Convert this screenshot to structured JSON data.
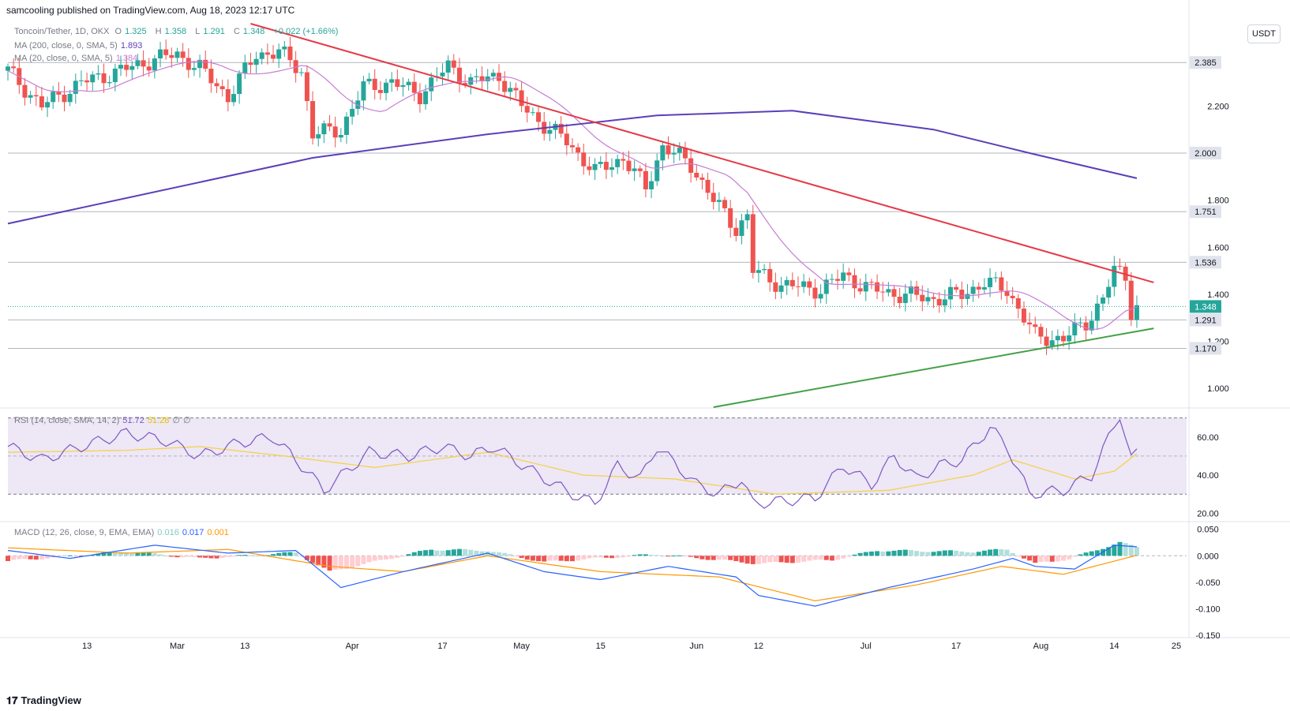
{
  "header": {
    "published": "samcooling published on TradingView.com, Aug 18, 2023 12:17 UTC",
    "currency_button": "USDT",
    "footer_brand": "TradingView"
  },
  "legend": {
    "symbol": "Toncoin/Tether, 1D, OKX",
    "o_label": "O",
    "o": "1.325",
    "h_label": "H",
    "h": "1.358",
    "l_label": "L",
    "l": "1.291",
    "c_label": "C",
    "c": "1.348",
    "change": "+0.022 (+1.66%)",
    "ma200": "MA (200, close, 0, SMA, 5)",
    "ma200_value": "1.893",
    "ma20": "MA (20, close, 0, SMA, 5)",
    "ma20_value": "1.384",
    "rsi": "RSI (14, close, SMA, 14, 2)",
    "rsi_value": "51.72",
    "rsi_ma_value": "51.28",
    "rsi_extra1": "∅",
    "rsi_extra2": "∅",
    "macd": "MACD (12, 26, close, 9, EMA, EMA)",
    "macd_hist": "0.016",
    "macd_line": "0.017",
    "macd_signal": "0.001"
  },
  "colors": {
    "up": "#26a69a",
    "down": "#ef5350",
    "ma200": "#5b3fb8",
    "ma20": "#c77dd6",
    "trend_resistance": "#e53946",
    "trend_support": "#43a047",
    "rsi_line": "#7e57c2",
    "rsi_ma": "#f5d142",
    "rsi_band": "#ede7f6",
    "macd_line": "#2962ff",
    "signal_line": "#ff9800",
    "hist_up_strong": "#26a69a",
    "hist_up_weak": "#b2dfdb",
    "hist_down_strong": "#ef5350",
    "hist_down_weak": "#ffcdd2"
  },
  "chart_data": {
    "type": "candlestick",
    "x_ticks": [
      "13",
      "Mar",
      "13",
      "Apr",
      "17",
      "May",
      "15",
      "Jun",
      "12",
      "Jul",
      "17",
      "Aug",
      "14",
      "25"
    ],
    "price_axis": {
      "ticks": [
        "2.200",
        "1.800",
        "1.600",
        "1.400",
        "1.200",
        "1.000"
      ],
      "level_labels": [
        "2.385",
        "2.000",
        "1.751",
        "1.536",
        "1.291",
        "1.170"
      ],
      "current_label": "1.348",
      "range": [
        0.92,
        2.55
      ]
    },
    "horizontal_levels": [
      2.385,
      2.0,
      1.751,
      1.536,
      1.291,
      1.17
    ],
    "current_price": 1.348,
    "price_anchors": [
      [
        "2023-01-30",
        2.35
      ],
      [
        "2023-02-05",
        2.2
      ],
      [
        "2023-02-12",
        2.3
      ],
      [
        "2023-02-19",
        2.35
      ],
      [
        "2023-02-25",
        2.4
      ],
      [
        "2023-03-01",
        2.42
      ],
      [
        "2023-03-05",
        2.36
      ],
      [
        "2023-03-10",
        2.24
      ],
      [
        "2023-03-15",
        2.42
      ],
      [
        "2023-03-19",
        2.43
      ],
      [
        "2023-03-23",
        2.35
      ],
      [
        "2023-03-25",
        2.08
      ],
      [
        "2023-03-30",
        2.1
      ],
      [
        "2023-04-03",
        2.28
      ],
      [
        "2023-04-08",
        2.3
      ],
      [
        "2023-04-13",
        2.25
      ],
      [
        "2023-04-18",
        2.37
      ],
      [
        "2023-04-22",
        2.3
      ],
      [
        "2023-04-27",
        2.33
      ],
      [
        "2023-05-01",
        2.2
      ],
      [
        "2023-05-05",
        2.12
      ],
      [
        "2023-05-09",
        2.05
      ],
      [
        "2023-05-14",
        1.92
      ],
      [
        "2023-05-19",
        1.98
      ],
      [
        "2023-05-23",
        1.85
      ],
      [
        "2023-05-26",
        2.03
      ],
      [
        "2023-05-31",
        1.95
      ],
      [
        "2023-06-04",
        1.8
      ],
      [
        "2023-06-08",
        1.68
      ],
      [
        "2023-06-10",
        1.73
      ],
      [
        "2023-06-11",
        1.5
      ],
      [
        "2023-06-16",
        1.44
      ],
      [
        "2023-06-23",
        1.42
      ],
      [
        "2023-06-27",
        1.48
      ],
      [
        "2023-07-02",
        1.42
      ],
      [
        "2023-07-07",
        1.4
      ],
      [
        "2023-07-13",
        1.38
      ],
      [
        "2023-07-18",
        1.4
      ],
      [
        "2023-07-22",
        1.45
      ],
      [
        "2023-07-26",
        1.42
      ],
      [
        "2023-07-29",
        1.3
      ],
      [
        "2023-07-31",
        1.22
      ],
      [
        "2023-08-05",
        1.21
      ],
      [
        "2023-08-09",
        1.28
      ],
      [
        "2023-08-12",
        1.38
      ],
      [
        "2023-08-14",
        1.5
      ],
      [
        "2023-08-16",
        1.48
      ],
      [
        "2023-08-17",
        1.33
      ],
      [
        "2023-08-18",
        1.348
      ]
    ],
    "ma200": [
      [
        "2023-01-30",
        1.7
      ],
      [
        "2023-03-25",
        1.98
      ],
      [
        "2023-04-25",
        2.08
      ],
      [
        "2023-05-25",
        2.16
      ],
      [
        "2023-06-18",
        2.18
      ],
      [
        "2023-07-13",
        2.1
      ],
      [
        "2023-07-30",
        2.0
      ],
      [
        "2023-08-18",
        1.893
      ]
    ],
    "trendlines": [
      {
        "name": "resistance",
        "points": [
          [
            "2023-03-14",
            2.55
          ],
          [
            "2023-08-21",
            1.45
          ]
        ]
      },
      {
        "name": "support",
        "points": [
          [
            "2023-06-04",
            0.92
          ],
          [
            "2023-08-21",
            1.255
          ]
        ]
      }
    ],
    "rsi": {
      "ticks": [
        "60.00",
        "40.00",
        "20.00"
      ],
      "range": [
        16,
        74
      ],
      "bands": [
        30,
        70
      ],
      "mid": 50,
      "values": [
        [
          "2023-01-30",
          55
        ],
        [
          "2023-02-05",
          48
        ],
        [
          "2023-02-12",
          55
        ],
        [
          "2023-02-20",
          62
        ],
        [
          "2023-02-27",
          58
        ],
        [
          "2023-03-05",
          50
        ],
        [
          "2023-03-12",
          57
        ],
        [
          "2023-03-18",
          60
        ],
        [
          "2023-03-24",
          42
        ],
        [
          "2023-03-27",
          32
        ],
        [
          "2023-04-04",
          52
        ],
        [
          "2023-04-11",
          50
        ],
        [
          "2023-04-17",
          55
        ],
        [
          "2023-04-22",
          50
        ],
        [
          "2023-04-26",
          55
        ],
        [
          "2023-05-04",
          40
        ],
        [
          "2023-05-10",
          30
        ],
        [
          "2023-05-14",
          25
        ],
        [
          "2023-05-18",
          45
        ],
        [
          "2023-05-22",
          38
        ],
        [
          "2023-05-25",
          55
        ],
        [
          "2023-06-01",
          35
        ],
        [
          "2023-06-05",
          30
        ],
        [
          "2023-06-09",
          38
        ],
        [
          "2023-06-11",
          25
        ],
        [
          "2023-06-22",
          28
        ],
        [
          "2023-06-27",
          45
        ],
        [
          "2023-07-02",
          35
        ],
        [
          "2023-07-06",
          50
        ],
        [
          "2023-07-10",
          38
        ],
        [
          "2023-07-14",
          45
        ],
        [
          "2023-07-18",
          48
        ],
        [
          "2023-07-23",
          65
        ],
        [
          "2023-07-26",
          55
        ],
        [
          "2023-07-30",
          30
        ],
        [
          "2023-08-05",
          32
        ],
        [
          "2023-08-10",
          40
        ],
        [
          "2023-08-14",
          66
        ],
        [
          "2023-08-15",
          72
        ],
        [
          "2023-08-16",
          60
        ],
        [
          "2023-08-17",
          48
        ],
        [
          "2023-08-18",
          51.72
        ]
      ],
      "ma": [
        [
          "2023-01-30",
          52
        ],
        [
          "2023-02-20",
          53
        ],
        [
          "2023-03-05",
          55
        ],
        [
          "2023-03-20",
          50
        ],
        [
          "2023-04-05",
          44
        ],
        [
          "2023-04-25",
          52
        ],
        [
          "2023-05-12",
          40
        ],
        [
          "2023-05-28",
          38
        ],
        [
          "2023-06-15",
          30
        ],
        [
          "2023-07-05",
          32
        ],
        [
          "2023-07-20",
          40
        ],
        [
          "2023-07-27",
          48
        ],
        [
          "2023-08-07",
          38
        ],
        [
          "2023-08-14",
          42
        ],
        [
          "2023-08-18",
          51.28
        ]
      ]
    },
    "macd": {
      "ticks": [
        "0.050",
        "0.000",
        "-0.050",
        "-0.100",
        "-0.150"
      ],
      "range": [
        -0.15,
        0.06
      ],
      "macd": [
        [
          "2023-01-30",
          0.01
        ],
        [
          "2023-02-10",
          -0.005
        ],
        [
          "2023-02-25",
          0.02
        ],
        [
          "2023-03-10",
          0.005
        ],
        [
          "2023-03-22",
          0.01
        ],
        [
          "2023-03-30",
          -0.06
        ],
        [
          "2023-04-10",
          -0.03
        ],
        [
          "2023-04-25",
          0.005
        ],
        [
          "2023-05-05",
          -0.03
        ],
        [
          "2023-05-15",
          -0.045
        ],
        [
          "2023-05-27",
          -0.02
        ],
        [
          "2023-06-08",
          -0.04
        ],
        [
          "2023-06-12",
          -0.075
        ],
        [
          "2023-06-22",
          -0.095
        ],
        [
          "2023-07-05",
          -0.06
        ],
        [
          "2023-07-20",
          -0.025
        ],
        [
          "2023-07-27",
          -0.005
        ],
        [
          "2023-07-31",
          -0.02
        ],
        [
          "2023-08-07",
          -0.025
        ],
        [
          "2023-08-14",
          0.02
        ],
        [
          "2023-08-18",
          0.017
        ]
      ],
      "signal": [
        [
          "2023-01-30",
          0.015
        ],
        [
          "2023-02-20",
          0.005
        ],
        [
          "2023-03-10",
          0.012
        ],
        [
          "2023-03-28",
          -0.02
        ],
        [
          "2023-04-10",
          -0.03
        ],
        [
          "2023-04-25",
          0.0
        ],
        [
          "2023-05-15",
          -0.03
        ],
        [
          "2023-06-05",
          -0.04
        ],
        [
          "2023-06-22",
          -0.085
        ],
        [
          "2023-07-10",
          -0.055
        ],
        [
          "2023-07-25",
          -0.02
        ],
        [
          "2023-08-05",
          -0.035
        ],
        [
          "2023-08-18",
          0.001
        ]
      ],
      "histogram_points": [
        [
          "2023-01-30",
          -0.01
        ],
        [
          "2023-02-20",
          0.008
        ],
        [
          "2023-03-05",
          -0.005
        ],
        [
          "2023-03-22",
          0.006
        ],
        [
          "2023-03-28",
          -0.03
        ],
        [
          "2023-04-15",
          0.012
        ],
        [
          "2023-04-25",
          0.01
        ],
        [
          "2023-05-05",
          -0.012
        ],
        [
          "2023-05-25",
          0.003
        ],
        [
          "2023-06-12",
          -0.015
        ],
        [
          "2023-06-25",
          -0.008
        ],
        [
          "2023-07-03",
          0.01
        ],
        [
          "2023-07-20",
          0.008
        ],
        [
          "2023-07-26",
          0.012
        ],
        [
          "2023-07-31",
          -0.015
        ],
        [
          "2023-08-06",
          -0.006
        ],
        [
          "2023-08-15",
          0.025
        ],
        [
          "2023-08-18",
          0.016
        ]
      ]
    }
  }
}
